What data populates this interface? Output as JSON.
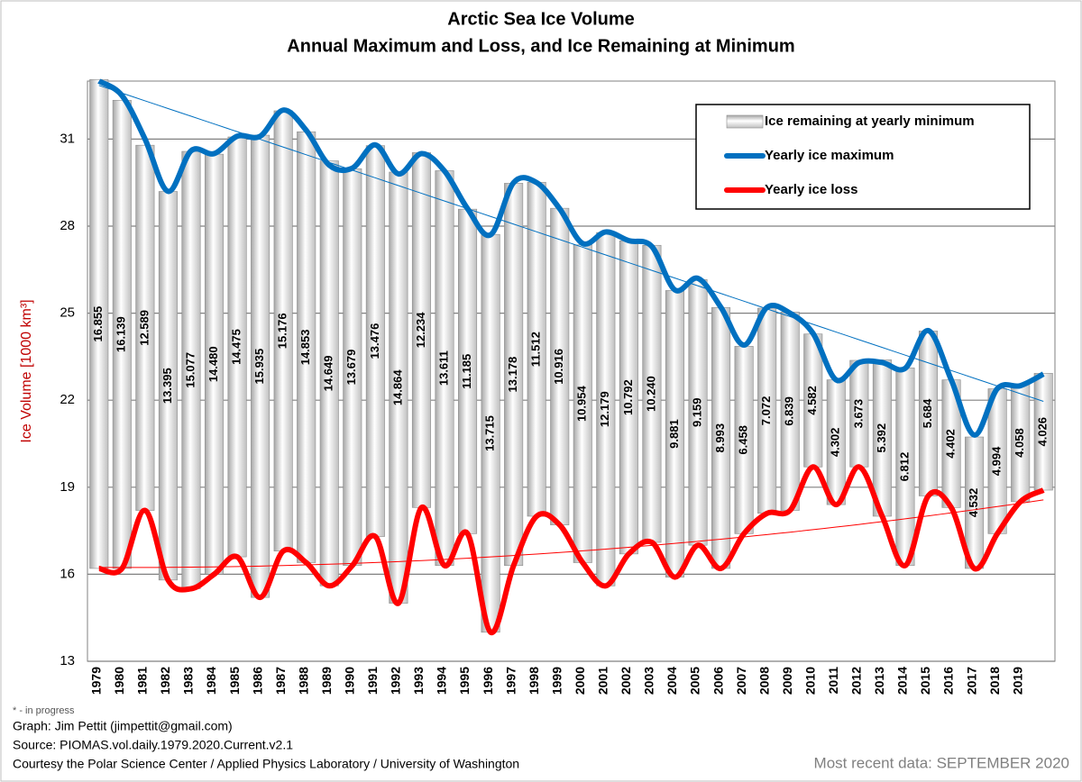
{
  "chart_data": {
    "type": "bar",
    "title": "Arctic Sea Ice Volume",
    "subtitle": "Annual Maximum and Loss, and Ice Remaining at Minimum",
    "y_label": "Ice Volume [1000 km³]",
    "categories": [
      "1979",
      "1980",
      "1981",
      "1982",
      "1983",
      "1984",
      "1985",
      "1986",
      "1987",
      "1988",
      "1989",
      "1990",
      "1991",
      "1992",
      "1993",
      "1994",
      "1995",
      "1996",
      "1997",
      "1998",
      "1999",
      "2000",
      "2001",
      "2002",
      "2003",
      "2004",
      "2005",
      "2006",
      "2007",
      "2008",
      "2009",
      "2010",
      "2011",
      "2012",
      "2013",
      "2014",
      "2015",
      "2016",
      "2017",
      "2018",
      "2019",
      null
    ],
    "series": [
      {
        "name": "Ice remaining at yearly minimum",
        "type": "bar",
        "color": "#d0d0d0",
        "base_series": 2,
        "values": [
          16.855,
          16.139,
          12.589,
          13.395,
          15.077,
          14.48,
          14.475,
          15.935,
          15.176,
          14.853,
          14.649,
          13.679,
          13.476,
          14.864,
          12.234,
          13.611,
          11.185,
          13.715,
          13.178,
          11.512,
          10.916,
          10.954,
          12.179,
          10.792,
          10.24,
          9.881,
          9.159,
          8.993,
          6.458,
          7.072,
          6.839,
          4.582,
          4.302,
          3.673,
          5.392,
          6.812,
          5.684,
          4.402,
          4.532,
          4.994,
          4.058,
          4.026
        ],
        "value_labels": [
          "16.855",
          "16.139",
          "12.589",
          "13.395",
          "15.077",
          "14.480",
          "14.475",
          "15.935",
          "15.176",
          "14.853",
          "14.649",
          "13.679",
          "13.476",
          "14.864",
          "12.234",
          "13.611",
          "11.185",
          "13.715",
          "13.178",
          "11.512",
          "10.916",
          "10.954",
          "12.179",
          "10.792",
          "10.240",
          "9.881",
          "9.159",
          "8.993",
          "6.458",
          "7.072",
          "6.839",
          "4.582",
          "4.302",
          "3.673",
          "5.392",
          "6.812",
          "5.684",
          "4.402",
          "4.532",
          "4.994",
          "4.058",
          "4.026"
        ]
      },
      {
        "name": "Yearly ice maximum",
        "type": "line",
        "color": "#0070c0",
        "trend": "linear",
        "values": [
          33.0,
          32.5,
          31.0,
          29.2,
          30.6,
          30.5,
          31.1,
          31.1,
          32.0,
          31.3,
          30.1,
          30.0,
          30.8,
          29.8,
          30.5,
          29.9,
          28.6,
          27.7,
          29.5,
          29.5,
          28.6,
          27.4,
          27.8,
          27.5,
          27.3,
          25.8,
          26.2,
          25.2,
          23.9,
          25.2,
          25.0,
          24.3,
          22.7,
          23.3,
          23.3,
          23.1,
          24.4,
          22.7,
          20.8,
          22.4,
          22.5,
          22.9
        ]
      },
      {
        "name": "Yearly ice loss",
        "type": "line",
        "color": "#ff0000",
        "trend": "quadratic",
        "values": [
          16.2,
          16.2,
          18.2,
          15.8,
          15.5,
          16.0,
          16.6,
          15.2,
          16.8,
          16.4,
          15.6,
          16.3,
          17.3,
          15.0,
          18.3,
          16.3,
          17.4,
          14.0,
          16.3,
          18.0,
          17.7,
          16.4,
          15.6,
          16.7,
          17.1,
          15.9,
          17.0,
          16.2,
          17.4,
          18.1,
          18.2,
          19.7,
          18.4,
          19.7,
          18.0,
          16.3,
          18.7,
          18.3,
          16.2,
          17.4,
          18.5,
          18.9
        ]
      }
    ],
    "ylim": [
      13,
      33
    ],
    "yticks": [
      13,
      16,
      19,
      22,
      25,
      28,
      31
    ],
    "grid": true,
    "legend": "upper right",
    "footnotes": [
      "* - in progress",
      "Graph: Jim Pettit (jimpettit@gmail.com)",
      "Source: PIOMAS.vol.daily.1979.2020.Current.v2.1",
      "Courtesy the Polar Science Center / Applied Physics Laboratory / University of Washington"
    ],
    "latest": "Most recent data: SEPTEMBER 2020"
  }
}
